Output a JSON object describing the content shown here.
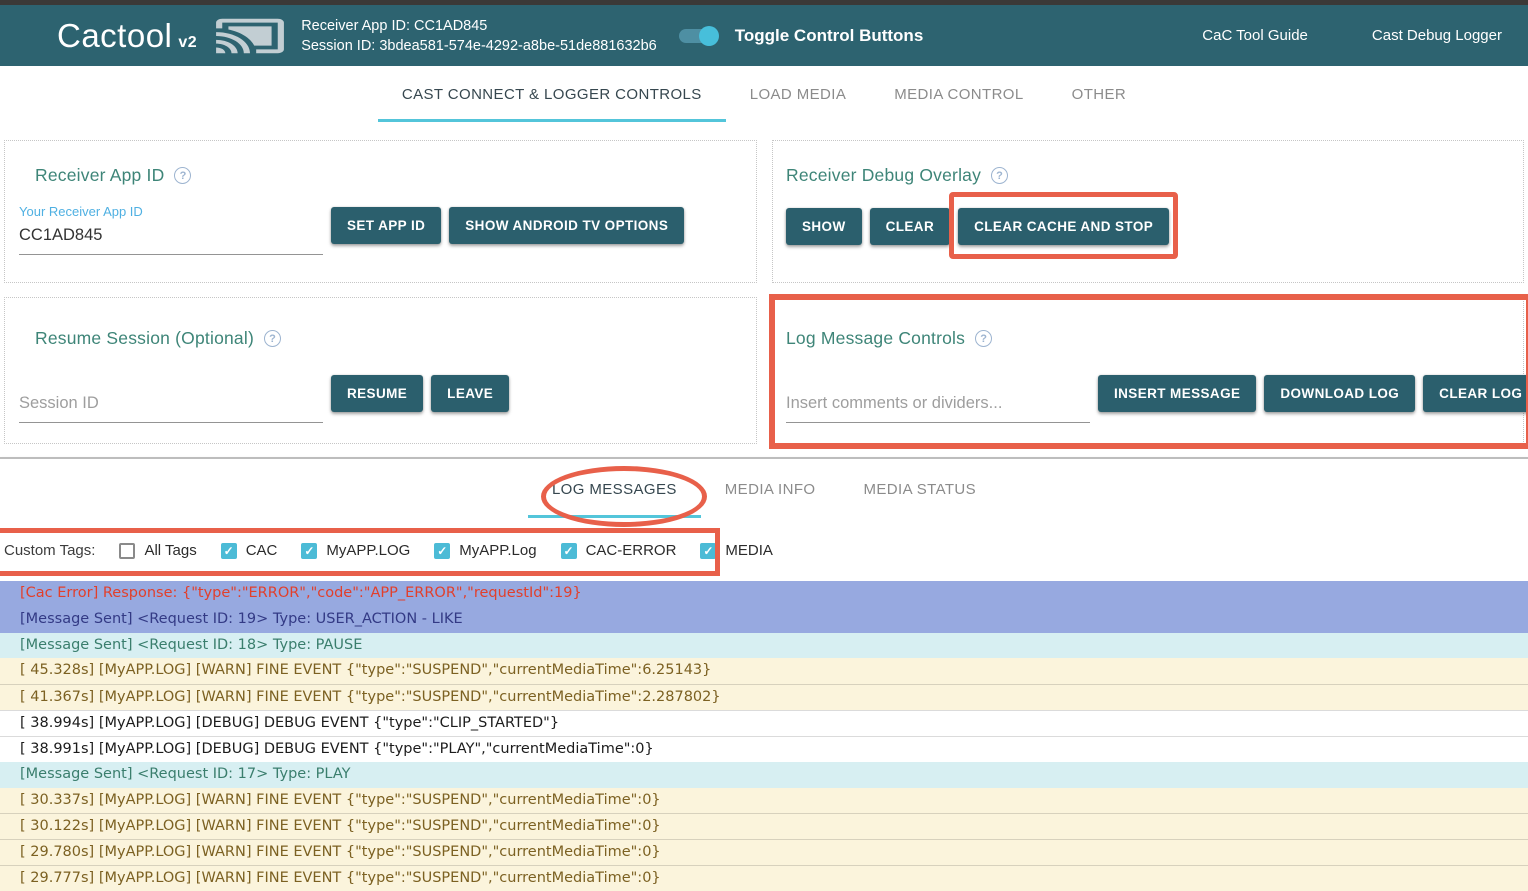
{
  "colors": {
    "header_bg": "#2d6370",
    "top_strip": "#3b3937",
    "button_teal": "#2b5f6d",
    "section_title_teal": "#3e8578",
    "tab_underline_cyan": "#53c5da",
    "annotation_orange": "#e8604a",
    "checkbox_checked_cyan": "#4cbbd6",
    "toggle_knob": "#47bfdb",
    "row_bg_blue": "#97a9e0",
    "row_bg_cyan": "#d7eff2",
    "row_bg_cream": "#fbf4dc",
    "row_text_error": "#e23f2b",
    "row_text_navy": "#333a85",
    "row_text_teal": "#3a7e6d",
    "row_text_brown": "#7c6122"
  },
  "header": {
    "app_title": "Cactool",
    "app_version": "v2",
    "receiver_app_id_line": "Receiver App ID: CC1AD845",
    "session_id_line": "Session ID: 3bdea581-574e-4292-a8be-51de881632b6",
    "toggle_label": "Toggle Control Buttons",
    "toggle_state": "on",
    "links": [
      "CaC Tool Guide",
      "Cast Debug Logger"
    ]
  },
  "tabs": {
    "main": [
      {
        "label": "CAST CONNECT & LOGGER CONTROLS",
        "active": true
      },
      {
        "label": "LOAD MEDIA",
        "active": false
      },
      {
        "label": "MEDIA CONTROL",
        "active": false
      },
      {
        "label": "OTHER",
        "active": false
      }
    ],
    "log": [
      {
        "label": "LOG MESSAGES",
        "active": true
      },
      {
        "label": "MEDIA INFO",
        "active": false
      },
      {
        "label": "MEDIA STATUS",
        "active": false
      }
    ]
  },
  "panels": {
    "receiver_app_id": {
      "title": "Receiver App ID",
      "field_label": "Your Receiver App ID",
      "field_value": "CC1AD845",
      "buttons": {
        "set_app_id": "SET APP ID",
        "show_android_tv": "SHOW ANDROID TV OPTIONS"
      }
    },
    "receiver_debug_overlay": {
      "title": "Receiver Debug Overlay",
      "buttons": {
        "show": "SHOW",
        "clear": "CLEAR",
        "clear_cache_and_stop": "CLEAR CACHE AND STOP"
      }
    },
    "resume_session": {
      "title": "Resume Session (Optional)",
      "field_placeholder": "Session ID",
      "buttons": {
        "resume": "RESUME",
        "leave": "LEAVE"
      }
    },
    "log_message_controls": {
      "title": "Log Message Controls",
      "field_placeholder": "Insert comments or dividers...",
      "buttons": {
        "insert_message": "INSERT MESSAGE",
        "download_log": "DOWNLOAD LOG",
        "clear_log": "CLEAR LOG"
      }
    }
  },
  "custom_tags": {
    "label": "Custom Tags:",
    "items": [
      {
        "label": "All Tags",
        "checked": false
      },
      {
        "label": "CAC",
        "checked": true
      },
      {
        "label": "MyAPP.LOG",
        "checked": true
      },
      {
        "label": "MyAPP.Log",
        "checked": true
      },
      {
        "label": "CAC-ERROR",
        "checked": true
      },
      {
        "label": "MEDIA",
        "checked": true
      }
    ]
  },
  "log": {
    "rows": [
      {
        "type": "error",
        "text": "[Cac Error] Response: {\"type\":\"ERROR\",\"code\":\"APP_ERROR\",\"requestId\":19}"
      },
      {
        "type": "request",
        "text": "[Message Sent] <Request ID: 19> Type: USER_ACTION - LIKE"
      },
      {
        "type": "sent",
        "text": "[Message Sent] <Request ID: 18> Type: PAUSE"
      },
      {
        "type": "warn",
        "text": "[ 45.328s] [MyAPP.LOG] [WARN] FINE EVENT {\"type\":\"SUSPEND\",\"currentMediaTime\":6.25143}"
      },
      {
        "type": "warn",
        "text": "[ 41.367s] [MyAPP.LOG] [WARN] FINE EVENT {\"type\":\"SUSPEND\",\"currentMediaTime\":2.287802}"
      },
      {
        "type": "debug",
        "text": "[ 38.994s] [MyAPP.LOG] [DEBUG] DEBUG EVENT {\"type\":\"CLIP_STARTED\"}"
      },
      {
        "type": "debug",
        "text": "[ 38.991s] [MyAPP.LOG] [DEBUG] DEBUG EVENT {\"type\":\"PLAY\",\"currentMediaTime\":0}"
      },
      {
        "type": "sent",
        "text": "[Message Sent] <Request ID: 17> Type: PLAY"
      },
      {
        "type": "warn",
        "text": "[ 30.337s] [MyAPP.LOG] [WARN] FINE EVENT {\"type\":\"SUSPEND\",\"currentMediaTime\":0}"
      },
      {
        "type": "warn",
        "text": "[ 30.122s] [MyAPP.LOG] [WARN] FINE EVENT {\"type\":\"SUSPEND\",\"currentMediaTime\":0}"
      },
      {
        "type": "warn",
        "text": "[ 29.780s] [MyAPP.LOG] [WARN] FINE EVENT {\"type\":\"SUSPEND\",\"currentMediaTime\":0}"
      },
      {
        "type": "warn",
        "text": "[ 29.777s] [MyAPP.LOG] [WARN] FINE EVENT {\"type\":\"SUSPEND\",\"currentMediaTime\":0}"
      }
    ]
  }
}
